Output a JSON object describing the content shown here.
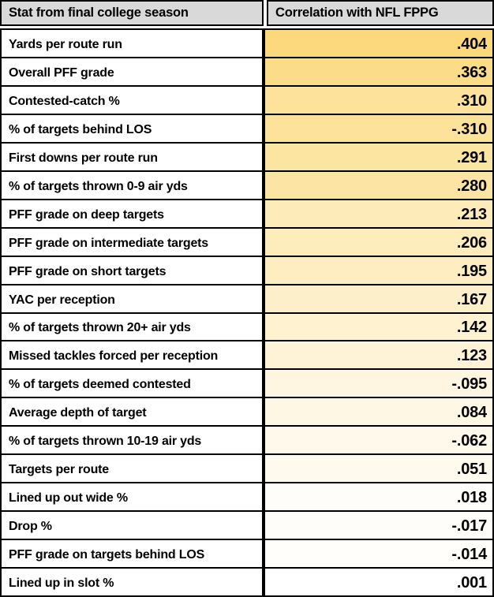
{
  "chart_data": {
    "type": "table",
    "columns": [
      "Stat from final college season",
      "Correlation with NFL FPPG"
    ],
    "rows": [
      {
        "stat": "Yards per route run",
        "correlation": ".404"
      },
      {
        "stat": "Overall PFF grade",
        "correlation": ".363"
      },
      {
        "stat": "Contested-catch %",
        "correlation": ".310"
      },
      {
        "stat": "% of targets behind LOS",
        "correlation": "-.310"
      },
      {
        "stat": "First downs per route run",
        "correlation": ".291"
      },
      {
        "stat": "% of targets thrown 0-9 air yds",
        "correlation": ".280"
      },
      {
        "stat": "PFF grade on deep targets",
        "correlation": ".213"
      },
      {
        "stat": "PFF grade on intermediate targets",
        "correlation": ".206"
      },
      {
        "stat": "PFF grade on short targets",
        "correlation": ".195"
      },
      {
        "stat": "YAC per reception",
        "correlation": ".167"
      },
      {
        "stat": "% of targets thrown 20+ air yds",
        "correlation": ".142"
      },
      {
        "stat": "Missed tackles forced per reception",
        "correlation": ".123"
      },
      {
        "stat": "% of targets deemed contested",
        "correlation": "-.095"
      },
      {
        "stat": "Average depth of target",
        "correlation": ".084"
      },
      {
        "stat": "% of targets thrown 10-19 air yds",
        "correlation": "-.062"
      },
      {
        "stat": "Targets per route",
        "correlation": ".051"
      },
      {
        "stat": "Lined up out wide %",
        "correlation": ".018"
      },
      {
        "stat": "Drop %",
        "correlation": "-.017"
      },
      {
        "stat": "PFF grade on targets behind LOS",
        "correlation": "-.014"
      },
      {
        "stat": "Lined up in slot %",
        "correlation": ".001"
      }
    ],
    "layout": {
      "legend": "none",
      "grid": "black cell borders",
      "value_column_shading": "cells shaded by absolute correlation, gold (max) to white (zero)"
    }
  },
  "colors": {
    "header_bg": "#d9d9d9",
    "border": "#000000",
    "scale_max_color": "#fbd97c",
    "scale_min_color": "#ffffff",
    "scale_max_abs": 0.404,
    "text": "#000000"
  }
}
